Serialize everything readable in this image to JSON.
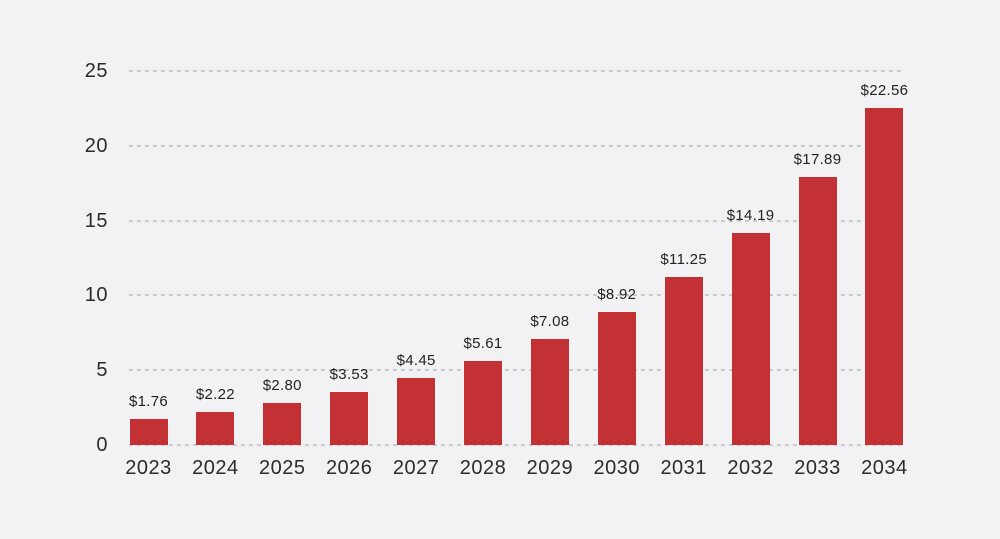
{
  "page": {
    "background_color": "#f2f2f4",
    "text_color": "#2b2b2e",
    "grid_color": "#c9c9cf"
  },
  "chart_data": {
    "type": "bar",
    "title": "",
    "xlabel": "",
    "ylabel": "",
    "categories": [
      "2023",
      "2024",
      "2025",
      "2026",
      "2027",
      "2028",
      "2029",
      "2030",
      "2031",
      "2032",
      "2033",
      "2034"
    ],
    "values": [
      1.76,
      2.22,
      2.8,
      3.53,
      4.45,
      5.61,
      7.08,
      8.92,
      11.25,
      14.19,
      17.89,
      22.56
    ],
    "value_labels": [
      "$1.76",
      "$2.22",
      "$2.80",
      "$3.53",
      "$4.45",
      "$5.61",
      "$7.08",
      "$8.92",
      "$11.25",
      "$14.19",
      "$17.89",
      "$22.56"
    ],
    "yticks": [
      0,
      5,
      10,
      15,
      20,
      25
    ],
    "ylim": [
      0,
      25
    ],
    "bar_color": "#c43134",
    "grid": "horizontal-dashed",
    "legend_position": "none"
  }
}
